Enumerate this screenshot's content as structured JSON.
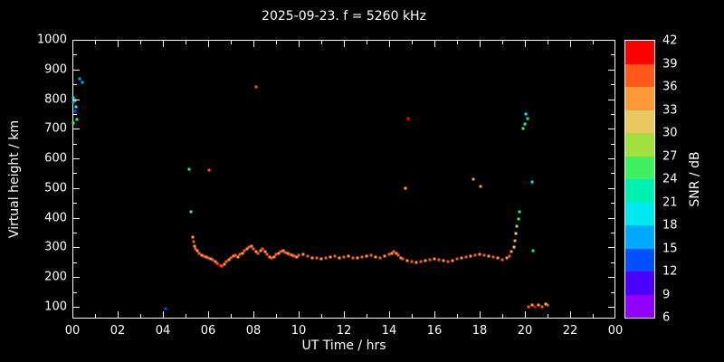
{
  "title": "2025-09-23. f = 5260 kHz",
  "colors": {
    "background": "#000000",
    "foreground": "#ffffff"
  },
  "chart_data": {
    "type": "scatter",
    "title": "2025-09-23. f = 5260 kHz",
    "xlabel": "UT Time / hrs",
    "ylabel": "Virtual height / km",
    "colorbar_label": "SNR / dB",
    "xlim": [
      0,
      24
    ],
    "ylim": [
      60,
      1000
    ],
    "grid": false,
    "x_ticks": [
      {
        "v": 0,
        "label": "00"
      },
      {
        "v": 2,
        "label": "02"
      },
      {
        "v": 4,
        "label": "04"
      },
      {
        "v": 6,
        "label": "06"
      },
      {
        "v": 8,
        "label": "08"
      },
      {
        "v": 10,
        "label": "10"
      },
      {
        "v": 12,
        "label": "12"
      },
      {
        "v": 14,
        "label": "14"
      },
      {
        "v": 16,
        "label": "16"
      },
      {
        "v": 18,
        "label": "18"
      },
      {
        "v": 20,
        "label": "20"
      },
      {
        "v": 22,
        "label": "22"
      },
      {
        "v": 24,
        "label": "00"
      }
    ],
    "x_minor_step": 1,
    "y_ticks": [
      {
        "v": 100,
        "label": "100"
      },
      {
        "v": 200,
        "label": "200"
      },
      {
        "v": 300,
        "label": "300"
      },
      {
        "v": 400,
        "label": "400"
      },
      {
        "v": 500,
        "label": "500"
      },
      {
        "v": 600,
        "label": "600"
      },
      {
        "v": 700,
        "label": "700"
      },
      {
        "v": 800,
        "label": "800"
      },
      {
        "v": 900,
        "label": "900"
      },
      {
        "v": 1000,
        "label": "1000"
      }
    ],
    "y_minor_step": 50,
    "colorbar": {
      "min": 6,
      "max": 42,
      "ticks": [
        6,
        9,
        12,
        15,
        18,
        21,
        24,
        27,
        30,
        33,
        36,
        39,
        42
      ],
      "bands": [
        {
          "from": 6,
          "to": 9,
          "color": "#9000FF"
        },
        {
          "from": 9,
          "to": 12,
          "color": "#4800FF"
        },
        {
          "from": 12,
          "to": 15,
          "color": "#0050FF"
        },
        {
          "from": 15,
          "to": 18,
          "color": "#00A8FF"
        },
        {
          "from": 18,
          "to": 21,
          "color": "#00E8F0"
        },
        {
          "from": 21,
          "to": 24,
          "color": "#00F0B0"
        },
        {
          "from": 24,
          "to": 27,
          "color": "#40F060"
        },
        {
          "from": 27,
          "to": 30,
          "color": "#A0E040"
        },
        {
          "from": 30,
          "to": 33,
          "color": "#E8C860"
        },
        {
          "from": 33,
          "to": 36,
          "color": "#FF9838"
        },
        {
          "from": 36,
          "to": 39,
          "color": "#FF5818"
        },
        {
          "from": 39,
          "to": 42,
          "color": "#FF0000"
        }
      ]
    },
    "points": [
      [
        0.05,
        805,
        18
      ],
      [
        0.05,
        790,
        15
      ],
      [
        0.1,
        795,
        33
      ],
      [
        0.1,
        760,
        12
      ],
      [
        0.15,
        775,
        18
      ],
      [
        0.2,
        732,
        21
      ],
      [
        0.3,
        870,
        15
      ],
      [
        0.45,
        858,
        15
      ],
      [
        0.05,
        718,
        24
      ],
      [
        4.1,
        95,
        12
      ],
      [
        5.15,
        565,
        21
      ],
      [
        5.25,
        420,
        24
      ],
      [
        5.3,
        335,
        33
      ],
      [
        5.35,
        318,
        36
      ],
      [
        5.4,
        305,
        33
      ],
      [
        5.45,
        295,
        36
      ],
      [
        5.5,
        288,
        33
      ],
      [
        5.6,
        280,
        36
      ],
      [
        5.7,
        274,
        33
      ],
      [
        5.8,
        271,
        36
      ],
      [
        5.9,
        268,
        33
      ],
      [
        6.0,
        266,
        36
      ],
      [
        6.05,
        560,
        36
      ],
      [
        6.1,
        262,
        33
      ],
      [
        6.2,
        257,
        36
      ],
      [
        6.3,
        251,
        33
      ],
      [
        6.4,
        245,
        36
      ],
      [
        6.5,
        240,
        39
      ],
      [
        6.6,
        238,
        36
      ],
      [
        6.7,
        243,
        33
      ],
      [
        6.8,
        251,
        36
      ],
      [
        6.9,
        259,
        33
      ],
      [
        7.0,
        266,
        36
      ],
      [
        7.1,
        271,
        33
      ],
      [
        7.2,
        273,
        36
      ],
      [
        7.3,
        268,
        33
      ],
      [
        7.4,
        276,
        36
      ],
      [
        7.5,
        281,
        33
      ],
      [
        7.6,
        290,
        36
      ],
      [
        7.7,
        296,
        33
      ],
      [
        7.8,
        301,
        36
      ],
      [
        7.9,
        305,
        33
      ],
      [
        8.0,
        296,
        36
      ],
      [
        8.1,
        286,
        33
      ],
      [
        8.1,
        840,
        36
      ],
      [
        8.2,
        281,
        36
      ],
      [
        8.3,
        289,
        33
      ],
      [
        8.4,
        296,
        36
      ],
      [
        8.5,
        286,
        33
      ],
      [
        8.6,
        276,
        36
      ],
      [
        8.7,
        269,
        33
      ],
      [
        8.8,
        263,
        36
      ],
      [
        8.9,
        269,
        33
      ],
      [
        9.0,
        276,
        36
      ],
      [
        9.1,
        281,
        33
      ],
      [
        9.2,
        286,
        36
      ],
      [
        9.3,
        289,
        33
      ],
      [
        9.4,
        283,
        36
      ],
      [
        9.5,
        279,
        33
      ],
      [
        9.6,
        276,
        36
      ],
      [
        9.7,
        273,
        33
      ],
      [
        9.8,
        271,
        36
      ],
      [
        9.9,
        269,
        33
      ],
      [
        10.0,
        273,
        36
      ],
      [
        10.2,
        276,
        33
      ],
      [
        10.4,
        271,
        36
      ],
      [
        10.6,
        266,
        33
      ],
      [
        10.8,
        263,
        36
      ],
      [
        11.0,
        261,
        33
      ],
      [
        11.2,
        266,
        36
      ],
      [
        11.4,
        269,
        33
      ],
      [
        11.6,
        271,
        36
      ],
      [
        11.8,
        266,
        33
      ],
      [
        12.0,
        269,
        36
      ],
      [
        12.2,
        271,
        33
      ],
      [
        12.4,
        266,
        36
      ],
      [
        12.6,
        263,
        33
      ],
      [
        12.8,
        269,
        36
      ],
      [
        13.0,
        271,
        33
      ],
      [
        13.2,
        273,
        36
      ],
      [
        13.4,
        269,
        33
      ],
      [
        13.6,
        266,
        36
      ],
      [
        13.8,
        271,
        33
      ],
      [
        14.0,
        276,
        36
      ],
      [
        14.1,
        281,
        33
      ],
      [
        14.2,
        286,
        36
      ],
      [
        14.3,
        281,
        33
      ],
      [
        14.4,
        273,
        36
      ],
      [
        14.5,
        266,
        33
      ],
      [
        14.6,
        261,
        36
      ],
      [
        14.7,
        500,
        33
      ],
      [
        14.8,
        256,
        33
      ],
      [
        14.85,
        735,
        39
      ],
      [
        15.0,
        251,
        36
      ],
      [
        15.2,
        249,
        33
      ],
      [
        15.4,
        251,
        36
      ],
      [
        15.6,
        256,
        33
      ],
      [
        15.8,
        259,
        36
      ],
      [
        16.0,
        261,
        33
      ],
      [
        16.2,
        259,
        36
      ],
      [
        16.4,
        256,
        33
      ],
      [
        16.6,
        253,
        36
      ],
      [
        16.8,
        256,
        33
      ],
      [
        17.0,
        261,
        36
      ],
      [
        17.2,
        266,
        33
      ],
      [
        17.4,
        269,
        36
      ],
      [
        17.6,
        271,
        33
      ],
      [
        17.7,
        530,
        33
      ],
      [
        17.8,
        273,
        36
      ],
      [
        18.0,
        276,
        33
      ],
      [
        18.05,
        505,
        33
      ],
      [
        18.2,
        273,
        36
      ],
      [
        18.4,
        271,
        33
      ],
      [
        18.6,
        269,
        36
      ],
      [
        18.8,
        263,
        33
      ],
      [
        19.0,
        259,
        36
      ],
      [
        19.2,
        263,
        33
      ],
      [
        19.3,
        271,
        36
      ],
      [
        19.4,
        286,
        33
      ],
      [
        19.5,
        301,
        30
      ],
      [
        19.55,
        321,
        33
      ],
      [
        19.6,
        346,
        30
      ],
      [
        19.65,
        372,
        27
      ],
      [
        19.7,
        396,
        24
      ],
      [
        19.75,
        420,
        21
      ],
      [
        19.9,
        700,
        24
      ],
      [
        20.0,
        715,
        21
      ],
      [
        20.05,
        750,
        18
      ],
      [
        20.1,
        735,
        21
      ],
      [
        20.3,
        520,
        18
      ],
      [
        20.35,
        290,
        21
      ],
      [
        20.15,
        100,
        36
      ],
      [
        20.3,
        106,
        33
      ],
      [
        20.45,
        100,
        39
      ],
      [
        20.6,
        106,
        33
      ],
      [
        20.75,
        100,
        36
      ],
      [
        20.9,
        110,
        30
      ],
      [
        21.0,
        105,
        36
      ]
    ]
  }
}
